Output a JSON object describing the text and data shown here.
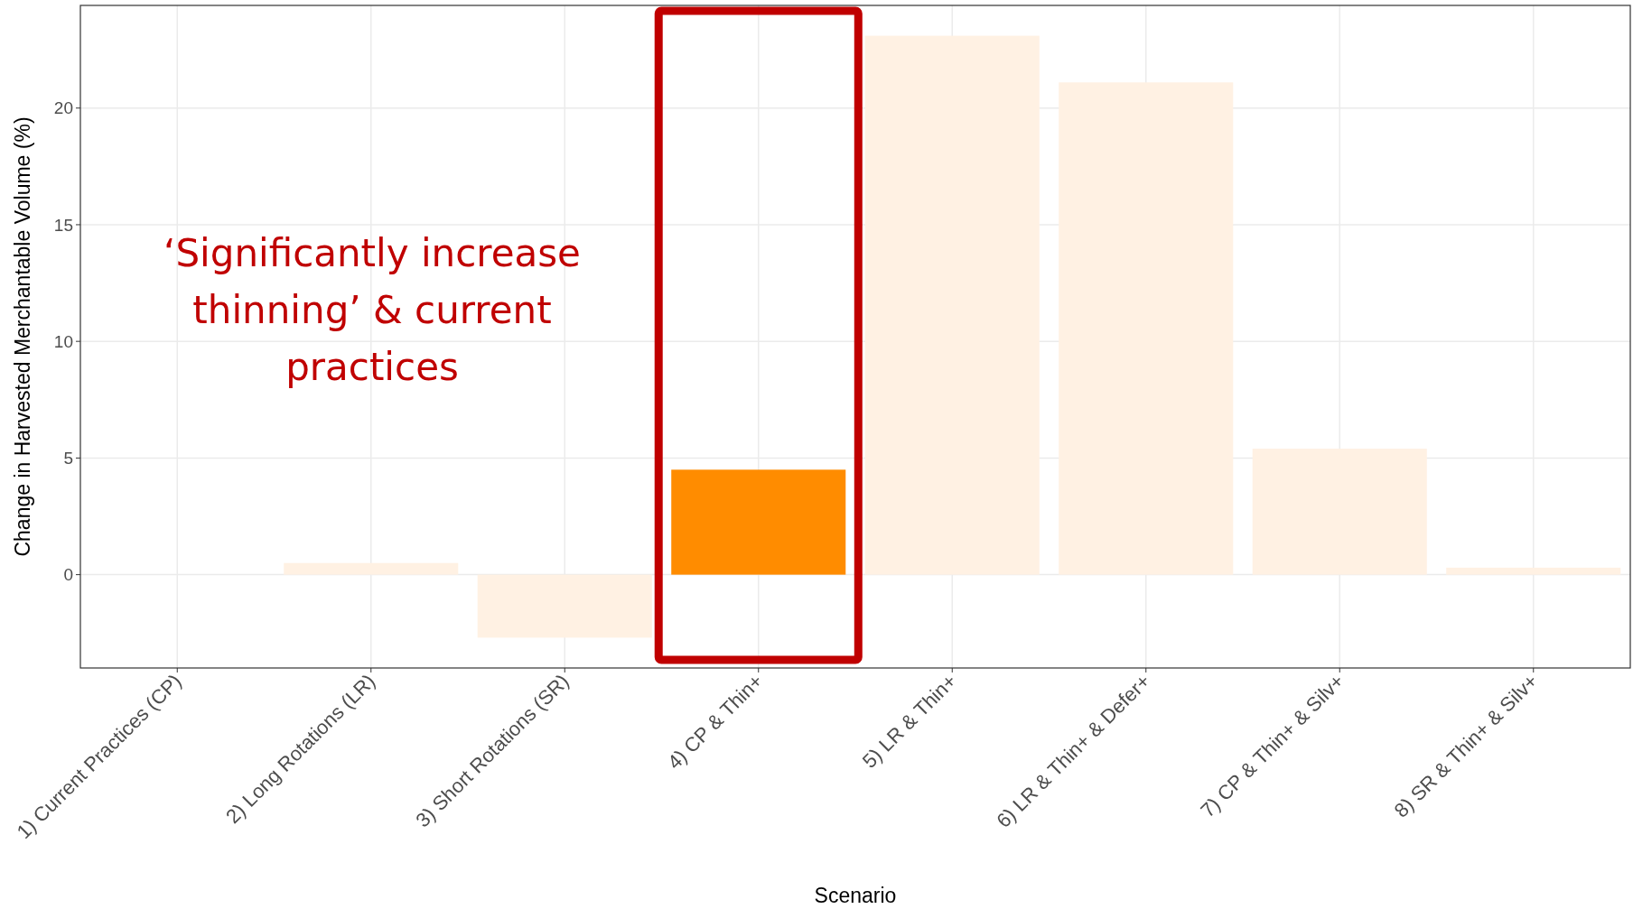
{
  "chart_data": {
    "type": "bar",
    "xlabel": "Scenario",
    "ylabel": "Change in Harvested Merchantable Volume (%)",
    "categories": [
      "1) Current Practices (CP)",
      "2) Long Rotations (LR)",
      "3) Short Rotations (SR)",
      "4) CP & Thin+",
      "5) LR & Thin+",
      "6) LR & Thin+ & Defer+",
      "7) CP & Thin+ & Silv+",
      "8) SR & Thin+ & Silv+"
    ],
    "values": [
      0,
      0.5,
      -2.7,
      4.5,
      23.1,
      21.1,
      5.4,
      0.3
    ],
    "colors": [
      "#fff1e3",
      "#fff1e3",
      "#fff1e3",
      "#ff8c00",
      "#fff1e3",
      "#fff1e3",
      "#fff1e3",
      "#fff1e3"
    ],
    "ylim": [
      -4,
      24.4
    ],
    "yticks": [
      0,
      5,
      10,
      15,
      20
    ],
    "grid": true,
    "annotations": [
      "‘Significantly increase thinning’ & current practices"
    ]
  }
}
